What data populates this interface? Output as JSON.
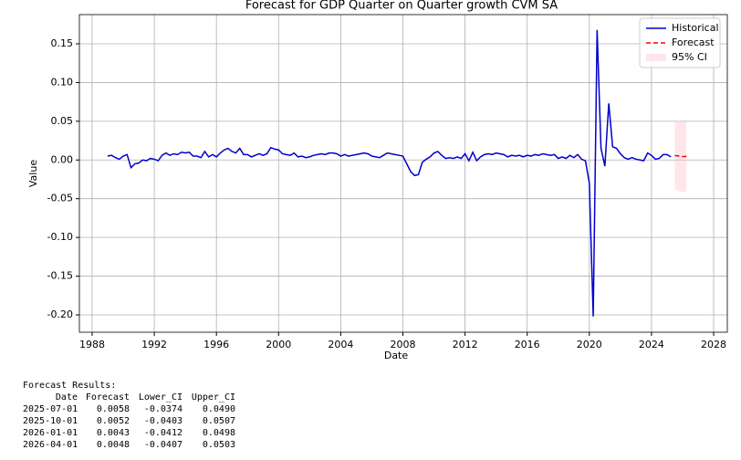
{
  "chart_data": {
    "type": "line",
    "title": "Forecast for GDP Quarter on Quarter growth CVM SA",
    "xlabel": "Date",
    "ylabel": "Value",
    "xlim": [
      1987.18,
      2028.88
    ],
    "ylim": [
      -0.2224,
      0.1877
    ],
    "xticks": [
      1988,
      1992,
      1996,
      2000,
      2004,
      2008,
      2012,
      2016,
      2020,
      2024,
      2028
    ],
    "yticks": [
      {
        "value": -0.2,
        "label": "-0.20"
      },
      -0.15,
      {
        "value": -0.1,
        "label": "-0.10"
      },
      -0.05,
      {
        "value": 0,
        "label": "0.00"
      },
      0.05,
      {
        "value": 0.1,
        "label": "0.10"
      },
      0.15
    ],
    "grid": true,
    "legend": "upper right",
    "series": [
      {
        "name": "Historical",
        "color": "#0000cc",
        "x": [
          1989,
          1989.25,
          1989.5,
          1989.75,
          1990,
          1990.25,
          1990.5,
          1990.75,
          1991,
          1991.25,
          1991.5,
          1991.75,
          1992,
          1992.25,
          1992.5,
          1992.75,
          1993,
          1993.25,
          1993.5,
          1993.75,
          1994,
          1994.25,
          1994.5,
          1994.75,
          1995,
          1995.25,
          1995.5,
          1995.75,
          1996,
          1996.25,
          1996.5,
          1996.75,
          1997,
          1997.25,
          1997.5,
          1997.75,
          1998,
          1998.25,
          1998.5,
          1998.75,
          1999,
          1999.25,
          1999.5,
          1999.75,
          2000,
          2000.25,
          2000.5,
          2000.75,
          2001,
          2001.25,
          2001.5,
          2001.75,
          2002,
          2002.25,
          2002.5,
          2002.75,
          2003,
          2003.25,
          2003.5,
          2003.75,
          2004,
          2004.25,
          2004.5,
          2004.75,
          2005,
          2005.25,
          2005.5,
          2005.75,
          2006,
          2006.25,
          2006.5,
          2006.75,
          2007,
          2007.25,
          2007.5,
          2007.75,
          2008,
          2008.25,
          2008.5,
          2008.75,
          2009,
          2009.25,
          2009.5,
          2009.75,
          2010,
          2010.25,
          2010.5,
          2010.75,
          2011,
          2011.25,
          2011.5,
          2011.75,
          2012,
          2012.25,
          2012.5,
          2012.75,
          2013,
          2013.25,
          2013.5,
          2013.75,
          2014,
          2014.25,
          2014.5,
          2014.75,
          2015,
          2015.25,
          2015.5,
          2015.75,
          2016,
          2016.25,
          2016.5,
          2016.75,
          2017,
          2017.25,
          2017.5,
          2017.75,
          2018,
          2018.25,
          2018.5,
          2018.75,
          2019,
          2019.25,
          2019.5,
          2019.75,
          2020,
          2020.25,
          2020.5,
          2020.75,
          2021,
          2021.25,
          2021.5,
          2021.75,
          2022,
          2022.25,
          2022.5,
          2022.75,
          2023,
          2023.25,
          2023.5,
          2023.75,
          2024,
          2024.25,
          2024.5,
          2024.75,
          2025,
          2025.25
        ],
        "values": [
          0.005,
          0.006,
          0.003,
          0.001,
          0.005,
          0.007,
          -0.01,
          -0.005,
          -0.004,
          0.0,
          -0.001,
          0.002,
          0.001,
          -0.001,
          0.006,
          0.009,
          0.006,
          0.008,
          0.007,
          0.01,
          0.009,
          0.01,
          0.005,
          0.005,
          0.003,
          0.011,
          0.004,
          0.007,
          0.004,
          0.009,
          0.013,
          0.015,
          0.011,
          0.009,
          0.015,
          0.007,
          0.007,
          0.004,
          0.006,
          0.008,
          0.006,
          0.008,
          0.016,
          0.014,
          0.013,
          0.008,
          0.007,
          0.006,
          0.009,
          0.004,
          0.005,
          0.003,
          0.004,
          0.006,
          0.007,
          0.008,
          0.007,
          0.009,
          0.009,
          0.008,
          0.005,
          0.007,
          0.005,
          0.006,
          0.007,
          0.008,
          0.009,
          0.008,
          0.005,
          0.004,
          0.003,
          0.006,
          0.009,
          0.008,
          0.007,
          0.006,
          0.005,
          -0.005,
          -0.015,
          -0.02,
          -0.019,
          -0.003,
          0.001,
          0.004,
          0.009,
          0.011,
          0.006,
          0.002,
          0.003,
          0.002,
          0.004,
          0.002,
          0.008,
          -0.001,
          0.01,
          -0.001,
          0.004,
          0.007,
          0.008,
          0.007,
          0.009,
          0.008,
          0.007,
          0.004,
          0.006,
          0.005,
          0.006,
          0.004,
          0.006,
          0.005,
          0.007,
          0.006,
          0.008,
          0.007,
          0.006,
          0.007,
          0.002,
          0.004,
          0.002,
          0.006,
          0.003,
          0.007,
          0.001,
          -0.001,
          -0.03,
          -0.202,
          0.168,
          0.015,
          -0.008,
          0.073,
          0.017,
          0.015,
          0.008,
          0.003,
          0.001,
          0.003,
          0.001,
          0.0,
          -0.001,
          0.009,
          0.006,
          0.001,
          0.002,
          0.007,
          0.007,
          0.004
        ]
      },
      {
        "name": "Forecast",
        "color": "#ff0000",
        "dashed": true,
        "x": [
          2025.5,
          2025.75,
          2026.0,
          2026.25
        ],
        "values": [
          0.0058,
          0.0052,
          0.0043,
          0.0048
        ]
      }
    ],
    "ci": {
      "name": "95% CI",
      "color": "#ffc0cb",
      "x": [
        2025.5,
        2025.75,
        2026.0,
        2026.25
      ],
      "lower": [
        -0.0374,
        -0.0403,
        -0.0412,
        -0.0407
      ],
      "upper": [
        0.049,
        0.0507,
        0.0498,
        0.0503
      ]
    }
  },
  "forecast_results": {
    "title": "Forecast Results:",
    "columns": [
      "Date",
      "Forecast",
      "Lower_CI",
      "Upper_CI"
    ],
    "rows": [
      [
        "2025-07-01",
        "0.0058",
        "-0.0374",
        "0.0490"
      ],
      [
        "2025-10-01",
        "0.0052",
        "-0.0403",
        "0.0507"
      ],
      [
        "2026-01-01",
        "0.0043",
        "-0.0412",
        "0.0498"
      ],
      [
        "2026-04-01",
        "0.0048",
        "-0.0407",
        "0.0503"
      ]
    ]
  }
}
